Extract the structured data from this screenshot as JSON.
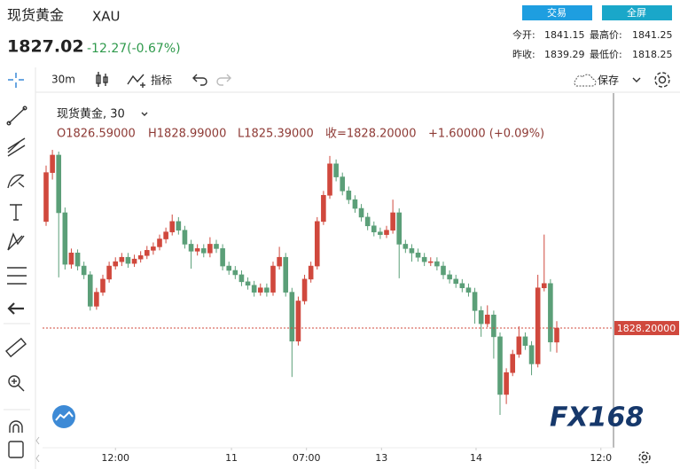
{
  "header": {
    "title": "现货黄金",
    "symbol": "XAU",
    "price": "1827.02",
    "change": "-12.27(-0.67%)",
    "buttons": [
      "交易",
      "全屏"
    ],
    "stats": [
      {
        "label": "今开:",
        "value": "1841.15"
      },
      {
        "label": "最高价:",
        "value": "1841.25"
      },
      {
        "label": "昨收:",
        "value": "1839.29"
      },
      {
        "label": "最低价:",
        "value": "1818.25"
      }
    ]
  },
  "toolbar": {
    "interval": "30m",
    "indicators": "指标",
    "save": "保存"
  },
  "chart_data": {
    "type": "candlestick",
    "title": "现货黄金, 30",
    "ohlc_labels": [
      "O1826.59000",
      "H1828.99000",
      "L1825.39000",
      "收=1828.20000",
      "+1.60000 (+0.09%)"
    ],
    "up_color": "#d0483d",
    "down_color": "#5b9f78",
    "candles": [
      [
        1840.4,
        1846.8,
        1839.9,
        1846.0
      ],
      [
        1846.0,
        1848.6,
        1845.2,
        1848.0
      ],
      [
        1848.0,
        1848.4,
        1834.0,
        1841.4
      ],
      [
        1841.4,
        1842.0,
        1834.9,
        1835.5
      ],
      [
        1835.5,
        1837.3,
        1835.0,
        1836.8
      ],
      [
        1836.8,
        1837.2,
        1834.8,
        1835.3
      ],
      [
        1835.3,
        1835.8,
        1833.8,
        1834.3
      ],
      [
        1834.3,
        1834.7,
        1830.2,
        1830.7
      ],
      [
        1830.7,
        1832.8,
        1830.3,
        1832.3
      ],
      [
        1832.3,
        1834.3,
        1831.9,
        1833.8
      ],
      [
        1833.8,
        1835.8,
        1833.4,
        1835.3
      ],
      [
        1835.3,
        1836.3,
        1834.9,
        1835.8
      ],
      [
        1835.8,
        1836.8,
        1835.3,
        1836.3
      ],
      [
        1836.3,
        1836.8,
        1835.1,
        1835.6
      ],
      [
        1835.6,
        1836.6,
        1835.2,
        1836.1
      ],
      [
        1836.1,
        1837.0,
        1835.7,
        1836.5
      ],
      [
        1836.5,
        1837.6,
        1836.1,
        1837.1
      ],
      [
        1837.1,
        1838.0,
        1836.6,
        1837.5
      ],
      [
        1837.5,
        1838.9,
        1837.1,
        1838.4
      ],
      [
        1838.4,
        1839.7,
        1837.9,
        1839.2
      ],
      [
        1839.2,
        1841.2,
        1838.8,
        1840.4
      ],
      [
        1840.4,
        1840.9,
        1838.9,
        1839.4
      ],
      [
        1839.4,
        1839.9,
        1837.3,
        1837.8
      ],
      [
        1837.8,
        1838.3,
        1835.0,
        1837.0
      ],
      [
        1837.0,
        1837.8,
        1836.5,
        1837.3
      ],
      [
        1837.3,
        1837.8,
        1836.3,
        1836.8
      ],
      [
        1836.8,
        1838.6,
        1836.3,
        1837.8
      ],
      [
        1837.8,
        1838.3,
        1836.8,
        1837.3
      ],
      [
        1837.3,
        1837.8,
        1834.8,
        1835.3
      ],
      [
        1835.3,
        1835.8,
        1834.3,
        1834.8
      ],
      [
        1834.8,
        1835.3,
        1833.8,
        1834.3
      ],
      [
        1834.3,
        1834.8,
        1833.0,
        1833.5
      ],
      [
        1833.5,
        1834.0,
        1832.6,
        1833.1
      ],
      [
        1833.1,
        1833.6,
        1831.8,
        1832.3
      ],
      [
        1832.3,
        1833.3,
        1831.9,
        1832.8
      ],
      [
        1832.8,
        1833.3,
        1831.8,
        1832.3
      ],
      [
        1832.3,
        1835.8,
        1831.9,
        1835.3
      ],
      [
        1835.3,
        1837.5,
        1834.9,
        1836.3
      ],
      [
        1836.3,
        1836.8,
        1831.8,
        1832.3
      ],
      [
        1832.3,
        1832.8,
        1822.6,
        1826.7
      ],
      [
        1826.7,
        1831.8,
        1826.2,
        1831.3
      ],
      [
        1831.3,
        1834.3,
        1830.9,
        1833.8
      ],
      [
        1833.8,
        1835.8,
        1833.4,
        1835.3
      ],
      [
        1835.3,
        1840.9,
        1834.9,
        1840.4
      ],
      [
        1840.4,
        1843.9,
        1840.0,
        1843.4
      ],
      [
        1843.4,
        1847.9,
        1843.0,
        1847.0
      ],
      [
        1847.0,
        1847.5,
        1845.0,
        1845.5
      ],
      [
        1845.5,
        1846.0,
        1843.4,
        1843.9
      ],
      [
        1843.9,
        1844.4,
        1842.4,
        1842.9
      ],
      [
        1842.9,
        1843.4,
        1841.4,
        1841.9
      ],
      [
        1841.9,
        1842.4,
        1840.4,
        1840.9
      ],
      [
        1840.9,
        1841.4,
        1839.4,
        1839.9
      ],
      [
        1839.9,
        1840.4,
        1838.7,
        1839.2
      ],
      [
        1839.2,
        1839.7,
        1838.4,
        1838.9
      ],
      [
        1838.9,
        1839.9,
        1838.5,
        1839.4
      ],
      [
        1839.4,
        1842.9,
        1839.0,
        1841.4
      ],
      [
        1841.4,
        1841.9,
        1833.9,
        1837.8
      ],
      [
        1837.8,
        1838.3,
        1836.8,
        1837.3
      ],
      [
        1837.3,
        1837.8,
        1835.8,
        1836.8
      ],
      [
        1836.8,
        1837.3,
        1835.8,
        1836.3
      ],
      [
        1836.3,
        1836.8,
        1835.3,
        1835.8
      ],
      [
        1835.8,
        1836.3,
        1835.3,
        1835.8
      ],
      [
        1835.8,
        1836.3,
        1834.8,
        1835.3
      ],
      [
        1835.3,
        1835.8,
        1833.8,
        1834.3
      ],
      [
        1834.3,
        1834.8,
        1833.3,
        1833.8
      ],
      [
        1833.8,
        1834.3,
        1832.8,
        1833.3
      ],
      [
        1833.3,
        1833.8,
        1832.3,
        1832.8
      ],
      [
        1832.8,
        1833.3,
        1831.8,
        1832.3
      ],
      [
        1832.3,
        1832.8,
        1828.7,
        1830.2
      ],
      [
        1830.2,
        1830.7,
        1827.2,
        1828.7
      ],
      [
        1828.7,
        1830.8,
        1828.3,
        1829.7
      ],
      [
        1829.7,
        1830.2,
        1824.7,
        1827.2
      ],
      [
        1827.2,
        1827.7,
        1818.25,
        1820.6
      ],
      [
        1820.6,
        1823.6,
        1819.5,
        1823.1
      ],
      [
        1823.1,
        1825.7,
        1822.7,
        1825.2
      ],
      [
        1825.2,
        1828.4,
        1824.8,
        1827.2
      ],
      [
        1827.2,
        1827.7,
        1825.7,
        1826.2
      ],
      [
        1826.2,
        1826.7,
        1822.8,
        1824.1
      ],
      [
        1824.1,
        1834.3,
        1823.7,
        1832.8
      ],
      [
        1832.8,
        1838.9,
        1832.4,
        1833.3
      ],
      [
        1833.3,
        1833.8,
        1825.5,
        1826.6
      ],
      [
        1826.59,
        1828.99,
        1825.39,
        1828.2
      ]
    ],
    "xlim": [
      0,
      90
    ],
    "xticks": [
      {
        "value": 11,
        "label": "12:00"
      },
      {
        "value": 29.4,
        "label": "11"
      },
      {
        "value": 41.3,
        "label": "07:00"
      },
      {
        "value": 53.2,
        "label": "13"
      },
      {
        "value": 68.2,
        "label": "14"
      },
      {
        "value": 88,
        "label": "12:0"
      }
    ],
    "ylim": [
      1814.5,
      1855.1
    ],
    "last_price": {
      "value": 1828.2,
      "label": "1828.20000"
    }
  },
  "watermark": "FX168"
}
